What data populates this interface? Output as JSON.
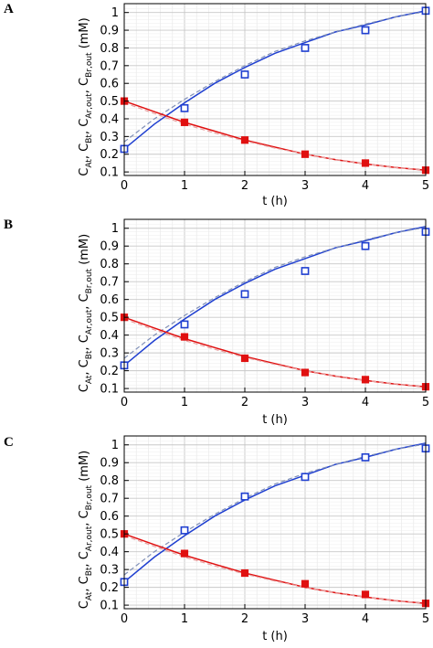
{
  "figure": {
    "panel_labels": [
      "A",
      "B",
      "C"
    ]
  },
  "chart_data": [
    {
      "type": "scatter",
      "panel": "A",
      "xlabel": "t (h)",
      "ylabel_parts": [
        "C",
        "At",
        ", C",
        "Bt",
        ", C",
        "Ar,out",
        ", C",
        "Br,out",
        " (mM)"
      ],
      "xlim": [
        0,
        5
      ],
      "ylim": [
        0.08,
        1.05
      ],
      "xticks": [
        "0",
        "1",
        "2",
        "3",
        "4",
        "5"
      ],
      "yticks": [
        "0.1",
        "0.2",
        "0.3",
        "0.4",
        "0.5",
        "0.6",
        "0.7",
        "0.8",
        "0.9",
        "1"
      ],
      "grid": true,
      "series": [
        {
          "marker": "open-square",
          "color": "#1f3fd0",
          "x": [
            0,
            1,
            2,
            3,
            4,
            5
          ],
          "y": [
            0.23,
            0.46,
            0.65,
            0.8,
            0.9,
            1.01
          ]
        },
        {
          "marker": "filled-square",
          "color": "#e01010",
          "x": [
            0,
            1,
            2,
            3,
            4,
            5
          ],
          "y": [
            0.5,
            0.38,
            0.28,
            0.2,
            0.15,
            0.11
          ]
        }
      ],
      "curves": [
        {
          "style": "solid",
          "color": "#1f3fd0",
          "x": [
            0,
            0.5,
            1,
            1.5,
            2,
            2.5,
            3,
            3.5,
            4,
            4.5,
            5
          ],
          "y": [
            0.23,
            0.37,
            0.49,
            0.6,
            0.69,
            0.77,
            0.83,
            0.89,
            0.93,
            0.975,
            1.01
          ]
        },
        {
          "style": "dashed",
          "color": "#8090b8",
          "x": [
            0,
            0.5,
            1,
            1.5,
            2,
            2.5,
            3,
            3.5,
            4,
            4.5,
            5
          ],
          "y": [
            0.27,
            0.4,
            0.51,
            0.61,
            0.7,
            0.78,
            0.84,
            0.89,
            0.935,
            0.975,
            1.005
          ]
        },
        {
          "style": "solid",
          "color": "#e01010",
          "x": [
            0,
            0.5,
            1,
            1.5,
            2,
            2.5,
            3,
            3.5,
            4,
            4.5,
            5
          ],
          "y": [
            0.5,
            0.44,
            0.38,
            0.33,
            0.28,
            0.24,
            0.2,
            0.17,
            0.145,
            0.125,
            0.11
          ]
        },
        {
          "style": "dashed",
          "color": "#e8a0a0",
          "x": [
            0,
            0.5,
            1,
            1.5,
            2,
            2.5,
            3,
            3.5,
            4,
            4.5,
            5
          ],
          "y": [
            0.49,
            0.43,
            0.37,
            0.32,
            0.275,
            0.235,
            0.2,
            0.17,
            0.145,
            0.125,
            0.11
          ]
        }
      ]
    },
    {
      "type": "scatter",
      "panel": "B",
      "xlabel": "t (h)",
      "ylabel_parts": [
        "C",
        "At",
        ", C",
        "Bt",
        ", C",
        "Ar,out",
        ", C",
        "Br,out",
        " (mM)"
      ],
      "xlim": [
        0,
        5
      ],
      "ylim": [
        0.08,
        1.05
      ],
      "xticks": [
        "0",
        "1",
        "2",
        "3",
        "4",
        "5"
      ],
      "yticks": [
        "0.1",
        "0.2",
        "0.3",
        "0.4",
        "0.5",
        "0.6",
        "0.7",
        "0.8",
        "0.9",
        "1"
      ],
      "grid": true,
      "series": [
        {
          "marker": "open-square",
          "color": "#1f3fd0",
          "x": [
            0,
            1,
            2,
            3,
            4,
            5
          ],
          "y": [
            0.23,
            0.46,
            0.63,
            0.76,
            0.9,
            0.98
          ]
        },
        {
          "marker": "filled-square",
          "color": "#e01010",
          "x": [
            0,
            1,
            2,
            3,
            4,
            5
          ],
          "y": [
            0.5,
            0.39,
            0.27,
            0.19,
            0.15,
            0.11
          ]
        }
      ],
      "curves": [
        {
          "style": "solid",
          "color": "#1f3fd0",
          "x": [
            0,
            0.5,
            1,
            1.5,
            2,
            2.5,
            3,
            3.5,
            4,
            4.5,
            5
          ],
          "y": [
            0.23,
            0.37,
            0.49,
            0.6,
            0.69,
            0.77,
            0.83,
            0.89,
            0.93,
            0.975,
            1.01
          ]
        },
        {
          "style": "dashed",
          "color": "#8090b8",
          "x": [
            0,
            0.5,
            1,
            1.5,
            2,
            2.5,
            3,
            3.5,
            4,
            4.5,
            5
          ],
          "y": [
            0.27,
            0.4,
            0.51,
            0.61,
            0.7,
            0.78,
            0.84,
            0.89,
            0.935,
            0.975,
            1.005
          ]
        },
        {
          "style": "solid",
          "color": "#e01010",
          "x": [
            0,
            0.5,
            1,
            1.5,
            2,
            2.5,
            3,
            3.5,
            4,
            4.5,
            5
          ],
          "y": [
            0.5,
            0.44,
            0.38,
            0.33,
            0.28,
            0.24,
            0.2,
            0.17,
            0.145,
            0.125,
            0.11
          ]
        },
        {
          "style": "dashed",
          "color": "#e8a0a0",
          "x": [
            0,
            0.5,
            1,
            1.5,
            2,
            2.5,
            3,
            3.5,
            4,
            4.5,
            5
          ],
          "y": [
            0.49,
            0.43,
            0.37,
            0.32,
            0.275,
            0.235,
            0.2,
            0.17,
            0.145,
            0.125,
            0.11
          ]
        }
      ]
    },
    {
      "type": "scatter",
      "panel": "C",
      "xlabel": "t (h)",
      "ylabel_parts": [
        "C",
        "At",
        ", C",
        "Bt",
        ", C",
        "Ar,out",
        ", C",
        "Br,out",
        " (mM)"
      ],
      "xlim": [
        0,
        5
      ],
      "ylim": [
        0.08,
        1.05
      ],
      "xticks": [
        "0",
        "1",
        "2",
        "3",
        "4",
        "5"
      ],
      "yticks": [
        "0.1",
        "0.2",
        "0.3",
        "0.4",
        "0.5",
        "0.6",
        "0.7",
        "0.8",
        "0.9",
        "1"
      ],
      "grid": true,
      "series": [
        {
          "marker": "open-square",
          "color": "#1f3fd0",
          "x": [
            0,
            1,
            2,
            3,
            4,
            5
          ],
          "y": [
            0.23,
            0.52,
            0.71,
            0.82,
            0.93,
            0.98
          ]
        },
        {
          "marker": "filled-square",
          "color": "#e01010",
          "x": [
            0,
            1,
            2,
            3,
            4,
            5
          ],
          "y": [
            0.5,
            0.39,
            0.28,
            0.22,
            0.16,
            0.11
          ]
        }
      ],
      "curves": [
        {
          "style": "solid",
          "color": "#1f3fd0",
          "x": [
            0,
            0.5,
            1,
            1.5,
            2,
            2.5,
            3,
            3.5,
            4,
            4.5,
            5
          ],
          "y": [
            0.23,
            0.37,
            0.49,
            0.6,
            0.69,
            0.77,
            0.83,
            0.89,
            0.93,
            0.975,
            1.01
          ]
        },
        {
          "style": "dashed",
          "color": "#8090b8",
          "x": [
            0,
            0.5,
            1,
            1.5,
            2,
            2.5,
            3,
            3.5,
            4,
            4.5,
            5
          ],
          "y": [
            0.27,
            0.4,
            0.51,
            0.61,
            0.7,
            0.78,
            0.84,
            0.89,
            0.935,
            0.975,
            1.005
          ]
        },
        {
          "style": "solid",
          "color": "#e01010",
          "x": [
            0,
            0.5,
            1,
            1.5,
            2,
            2.5,
            3,
            3.5,
            4,
            4.5,
            5
          ],
          "y": [
            0.5,
            0.44,
            0.38,
            0.33,
            0.28,
            0.24,
            0.2,
            0.17,
            0.145,
            0.125,
            0.11
          ]
        },
        {
          "style": "dashed",
          "color": "#e8a0a0",
          "x": [
            0,
            0.5,
            1,
            1.5,
            2,
            2.5,
            3,
            3.5,
            4,
            4.5,
            5
          ],
          "y": [
            0.49,
            0.43,
            0.37,
            0.32,
            0.275,
            0.235,
            0.2,
            0.17,
            0.145,
            0.125,
            0.11
          ]
        }
      ]
    }
  ]
}
